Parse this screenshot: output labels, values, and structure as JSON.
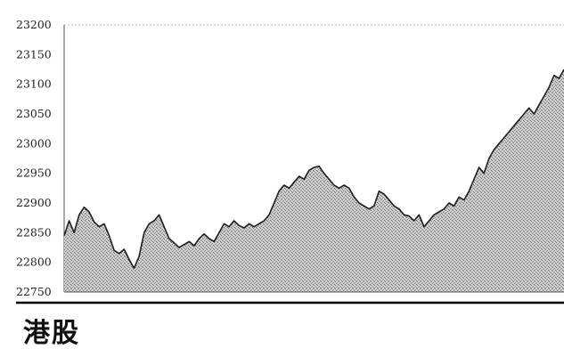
{
  "caption": "港股",
  "chart_data": {
    "type": "area",
    "title": "",
    "xlabel": "",
    "ylabel": "",
    "ylim": [
      22750,
      23200
    ],
    "yticks": [
      23200,
      23150,
      23100,
      23050,
      23000,
      22950,
      22900,
      22850,
      22800,
      22750
    ],
    "grid": false,
    "legend": "none",
    "fill": "stippled-gray",
    "line_color": "#222222",
    "x": [
      0,
      1,
      2,
      3,
      4,
      5,
      6,
      7,
      8,
      9,
      10,
      11,
      12,
      13,
      14,
      15,
      16,
      17,
      18,
      19,
      20,
      21,
      22,
      23,
      24,
      25,
      26,
      27,
      28,
      29,
      30,
      31,
      32,
      33,
      34,
      35,
      36,
      37,
      38,
      39,
      40,
      41,
      42,
      43,
      44,
      45,
      46,
      47,
      48,
      49,
      50,
      51,
      52,
      53,
      54,
      55,
      56,
      57,
      58,
      59,
      60,
      61,
      62,
      63,
      64,
      65,
      66,
      67,
      68,
      69,
      70,
      71,
      72,
      73,
      74,
      75,
      76,
      77,
      78,
      79,
      80,
      81,
      82,
      83,
      84,
      85,
      86,
      87,
      88,
      89,
      90,
      91,
      92,
      93,
      94,
      95,
      96,
      97,
      98,
      99,
      100
    ],
    "series": [
      {
        "values": [
          22845,
          22870,
          22850,
          22880,
          22893,
          22885,
          22868,
          22860,
          22865,
          22845,
          22820,
          22815,
          22822,
          22805,
          22790,
          22810,
          22850,
          22865,
          22870,
          22880,
          22860,
          22840,
          22833,
          22825,
          22830,
          22835,
          22828,
          22840,
          22848,
          22840,
          22835,
          22850,
          22865,
          22860,
          22870,
          22862,
          22858,
          22865,
          22860,
          22865,
          22870,
          22880,
          22900,
          22920,
          22930,
          22925,
          22935,
          22945,
          22940,
          22955,
          22960,
          22962,
          22950,
          22940,
          22930,
          22925,
          22930,
          22925,
          22910,
          22900,
          22895,
          22890,
          22895,
          22920,
          22915,
          22905,
          22895,
          22890,
          22880,
          22878,
          22870,
          22880,
          22860,
          22870,
          22880,
          22885,
          22890,
          22900,
          22895,
          22910,
          22905,
          22920,
          22940,
          22960,
          22950,
          22975,
          22990,
          23000,
          23010,
          23020,
          23030,
          23040,
          23050,
          23060,
          23050,
          23065,
          23080,
          23095,
          23115,
          23110,
          23125
        ]
      }
    ]
  }
}
